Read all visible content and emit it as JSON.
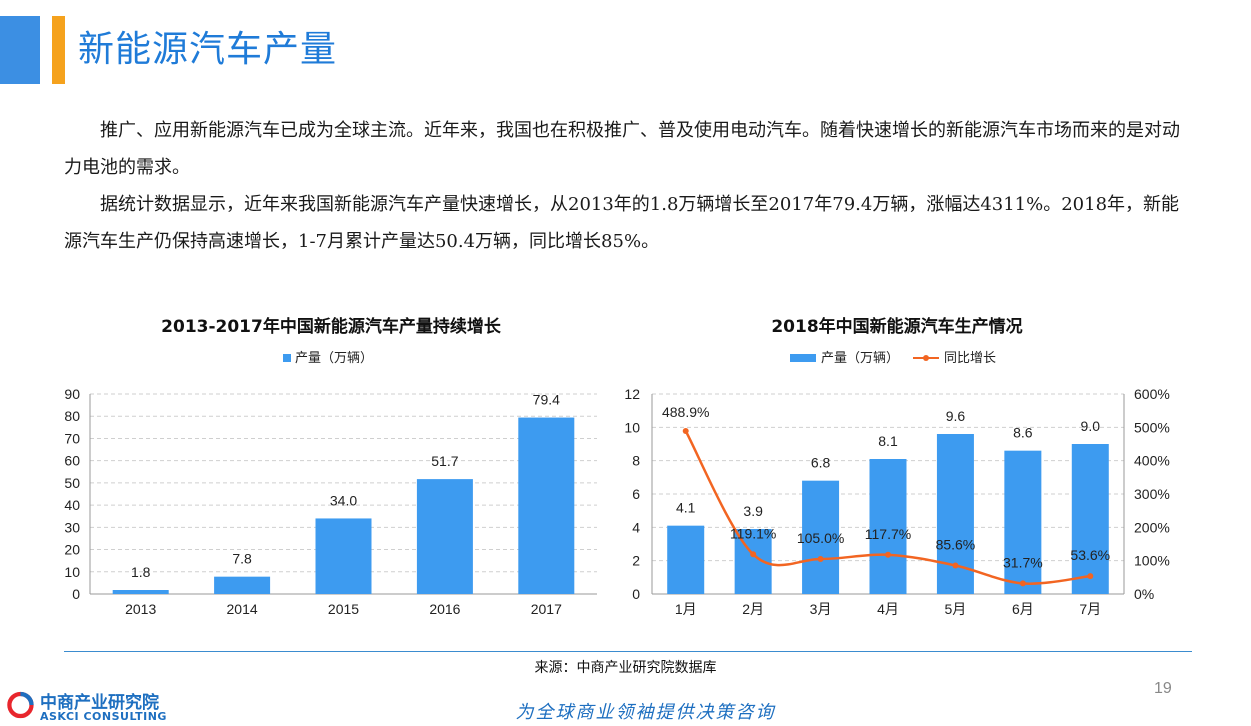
{
  "header": {
    "title": "新能源汽车产量"
  },
  "paragraphs": [
    "推广、应用新能源汽车已成为全球主流。近年来，我国也在积极推广、普及使用电动汽车。随着快速增长的新能源汽车市场而来的是对动力电池的需求。",
    "据统计数据显示，近年来我国新能源汽车产量快速增长，从2013年的1.8万辆增长至2017年79.4万辆，涨幅达4311%。2018年，新能源汽车生产仍保持高速增长，1-7月累计产量达50.4万辆，同比增长85%。"
  ],
  "chart_data": [
    {
      "type": "bar",
      "title": "2013-2017年中国新能源汽车产量持续增长",
      "categories": [
        "2013",
        "2014",
        "2015",
        "2016",
        "2017"
      ],
      "series": [
        {
          "name": "产量（万辆）",
          "values": [
            1.8,
            7.8,
            34.0,
            51.7,
            79.4
          ],
          "color": "#3d9bf0"
        }
      ],
      "data_labels": [
        "1.8",
        "7.8",
        "34.0",
        "51.7",
        "79.4"
      ],
      "y_ticks": [
        "0",
        "10",
        "20",
        "30",
        "40",
        "50",
        "60",
        "70",
        "80",
        "90"
      ],
      "ylim": [
        0,
        90
      ],
      "grid": true,
      "legend": "top-center"
    },
    {
      "type": "bar",
      "title": "2018年中国新能源汽车生产情况",
      "categories": [
        "1月",
        "2月",
        "3月",
        "4月",
        "5月",
        "6月",
        "7月"
      ],
      "series": [
        {
          "name": "产量（万辆）",
          "type": "bar",
          "axis": "left",
          "values": [
            4.1,
            3.9,
            6.8,
            8.1,
            9.6,
            8.6,
            9.0
          ],
          "color": "#3d9bf0",
          "data_labels": [
            "4.1",
            "3.9",
            "6.8",
            "8.1",
            "9.6",
            "8.6",
            "9.0"
          ]
        },
        {
          "name": "同比增长",
          "type": "line",
          "axis": "right",
          "values": [
            488.9,
            119.1,
            105.0,
            117.7,
            85.6,
            31.7,
            53.6
          ],
          "color": "#f26522",
          "data_labels": [
            "488.9%",
            "119.1%",
            "105.0%",
            "117.7%",
            "85.6%",
            "31.7%",
            "53.6%"
          ]
        }
      ],
      "y_ticks": [
        "0",
        "2",
        "4",
        "6",
        "8",
        "10",
        "12"
      ],
      "ylim": [
        0,
        12
      ],
      "y2_ticks": [
        "0%",
        "100%",
        "200%",
        "300%",
        "400%",
        "500%",
        "600%"
      ],
      "y2lim": [
        0,
        600
      ],
      "grid": true,
      "legend": "top-center"
    }
  ],
  "footer": {
    "source": "来源：中商产业研究院数据库",
    "page_number": "19",
    "logo_cn": "中商产业研究院",
    "logo_en": "ASKCI CONSULTING",
    "slogan": "为全球商业领袖提供决策咨询"
  }
}
